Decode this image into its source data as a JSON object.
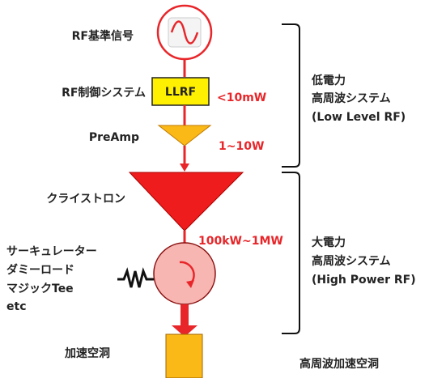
{
  "labels": {
    "reference": "RF基準信号",
    "control": "RF制御システム",
    "llrf": "LLRF",
    "preamp": "PreAmp",
    "klystron": "クライストロン",
    "circulator": [
      "サーキュレーター",
      "ダミーロード",
      "マジックTee",
      "etc"
    ],
    "cavity": "加速空洞"
  },
  "powers": [
    "<10mW",
    "1~10W",
    "100kW~1MW"
  ],
  "groups": [
    {
      "lines": [
        "低電力",
        "高周波システム",
        "(Low Level RF)"
      ]
    },
    {
      "lines": [
        "大電力",
        "高周波システム",
        "(High Power RF)"
      ]
    }
  ],
  "footer": "高周波加速空洞"
}
